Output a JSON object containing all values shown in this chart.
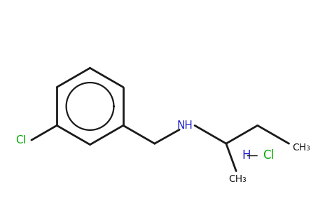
{
  "bg_color": "#ffffff",
  "bond_color": "#1a1a1a",
  "cl_color": "#00aa00",
  "nh_color": "#2222cc",
  "line_width": 2.0,
  "figsize": [
    4.74,
    2.93
  ],
  "dpi": 100,
  "cl_label": "Cl",
  "nh_label": "NH",
  "ch3_label_1": "CH₃",
  "ch3_label_2": "CH₃",
  "font_size_labels": 10,
  "font_size_hcl": 11
}
